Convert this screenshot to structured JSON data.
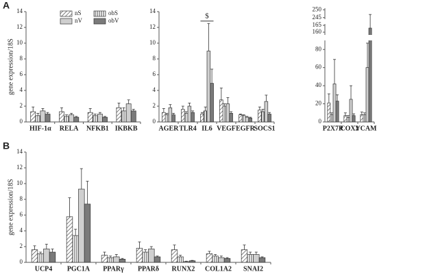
{
  "legend": [
    {
      "name": "nS",
      "color": "#ffffff",
      "pattern": "diagonal"
    },
    {
      "name": "nV",
      "color": "#cfcfcf",
      "pattern": "solid"
    },
    {
      "name": "obS",
      "color": "#ffffff",
      "pattern": "vertical"
    },
    {
      "name": "obV",
      "color": "#7a7a7a",
      "pattern": "solid"
    }
  ],
  "series_order": [
    0,
    2,
    1,
    3
  ],
  "chart_data": [
    {
      "type": "bar",
      "panel": "A",
      "ylabel": "gene expression/18S",
      "categories": [
        "HIF-1α",
        "RELA",
        "NFKB1",
        "IKBKB"
      ],
      "series": [
        {
          "values": [
            1.3,
            1.3,
            1.2,
            1.8
          ],
          "errors": [
            0.6,
            0.5,
            0.5,
            0.6
          ]
        },
        {
          "values": [
            0.8,
            0.7,
            0.8,
            1.4
          ],
          "errors": [
            0.3,
            0.2,
            0.2,
            0.4
          ]
        },
        {
          "values": [
            1.4,
            0.9,
            1.0,
            2.3
          ],
          "errors": [
            0.3,
            0.2,
            0.2,
            0.5
          ]
        },
        {
          "values": [
            1.0,
            0.6,
            0.6,
            1.4
          ],
          "errors": [
            0.2,
            0.1,
            0.1,
            0.2
          ]
        }
      ],
      "ylim": [
        0,
        14
      ],
      "yticks": [
        0,
        2,
        4,
        6,
        8,
        10,
        12,
        14
      ]
    },
    {
      "type": "bar",
      "categories": [
        "AGER",
        "TLR4",
        "IL6",
        "VEGF",
        "EGFR",
        "SOCS1"
      ],
      "series": [
        {
          "values": [
            1.2,
            1.6,
            1.0,
            2.8,
            0.9,
            1.5
          ],
          "errors": [
            0.5,
            0.4,
            0.2,
            1.5,
            0.1,
            0.4
          ]
        },
        {
          "values": [
            0.9,
            1.1,
            1.4,
            2.0,
            0.8,
            1.3
          ],
          "errors": [
            0.2,
            0.2,
            0.5,
            0.3,
            0.1,
            0.3
          ]
        },
        {
          "values": [
            1.8,
            2.0,
            9.0,
            2.3,
            0.6,
            2.6
          ],
          "errors": [
            0.4,
            0.4,
            3.5,
            0.8,
            0.1,
            0.8
          ]
        },
        {
          "values": [
            0.9,
            1.2,
            4.9,
            1.1,
            0.5,
            1.0
          ],
          "errors": [
            0.2,
            0.2,
            1.8,
            0.2,
            0.1,
            0.2
          ]
        }
      ],
      "annotation": {
        "text": "$",
        "category": 2,
        "y": 12.8
      },
      "ylim": [
        0,
        14
      ],
      "yticks": [
        0,
        2,
        4,
        6,
        8,
        10,
        12,
        14
      ]
    },
    {
      "type": "bar",
      "categories": [
        "P2X7R",
        "COX2",
        "VCAM"
      ],
      "series": [
        {
          "values": [
            21,
            7,
            8
          ],
          "errors": [
            10,
            3,
            3
          ]
        },
        {
          "values": [
            8,
            5,
            8
          ],
          "errors": [
            2,
            2,
            2
          ]
        },
        {
          "values": [
            42,
            25,
            60
          ],
          "errors": [
            27,
            15,
            27
          ]
        },
        {
          "values": [
            23,
            7,
            163
          ],
          "errors": [
            7,
            2,
            84
          ]
        }
      ],
      "ysegments": [
        [
          0,
          90
        ],
        [
          158,
          166
        ],
        [
          244,
          251
        ]
      ],
      "ylim": [
        0,
        251
      ],
      "yticks": [
        0,
        20,
        40,
        60,
        80,
        160,
        165,
        245,
        250
      ]
    },
    {
      "type": "bar",
      "panel": "B",
      "ylabel": "gene expression/18S",
      "categories": [
        "UCP4",
        "PGC1A",
        "PPARγ",
        "PPARδ",
        "RUNX2",
        "COL1A2",
        "SNAI2"
      ],
      "series": [
        {
          "values": [
            1.6,
            5.8,
            0.9,
            1.8,
            1.6,
            1.1,
            1.6
          ],
          "errors": [
            0.5,
            2.4,
            0.4,
            0.8,
            0.6,
            0.3,
            0.6
          ]
        },
        {
          "values": [
            1.1,
            3.4,
            0.6,
            1.3,
            0.7,
            0.8,
            1.0
          ],
          "errors": [
            0.2,
            0.8,
            0.2,
            0.3,
            0.2,
            0.2,
            0.3
          ]
        },
        {
          "values": [
            1.7,
            9.3,
            0.7,
            1.7,
            0.1,
            0.6,
            1.0
          ],
          "errors": [
            0.6,
            2.6,
            0.3,
            0.3,
            0.05,
            0.2,
            0.3
          ]
        },
        {
          "values": [
            1.3,
            7.4,
            0.4,
            0.7,
            0.2,
            0.5,
            0.6
          ],
          "errors": [
            0.4,
            2.9,
            0.1,
            0.1,
            0.05,
            0.1,
            0.1
          ]
        }
      ],
      "ylim": [
        0,
        14
      ],
      "yticks": [
        0,
        2,
        4,
        6,
        8,
        10,
        12,
        14
      ]
    }
  ]
}
